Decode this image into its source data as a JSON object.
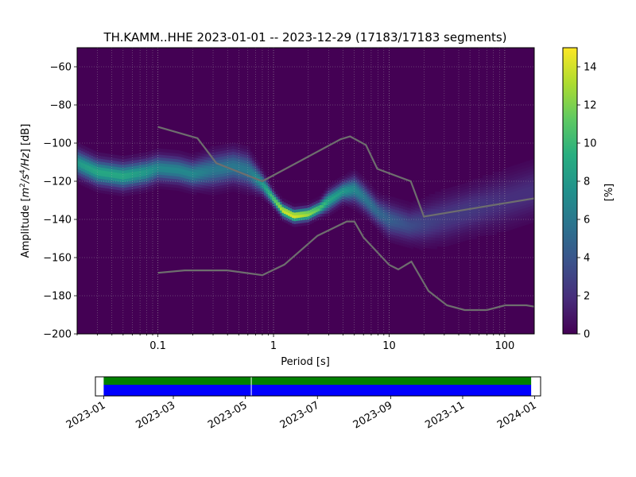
{
  "chart_data": [
    {
      "type": "heatmap",
      "title": "TH.KAMM..HHE   2023-01-01 -- 2023-12-29  (17183/17183 segments)",
      "xlabel": "Period [s]",
      "ylabel_prefix": "Amplitude [",
      "ylabel_unit_m": "m",
      "ylabel_unit_m_exp": "2",
      "ylabel_unit_s": "/s",
      "ylabel_unit_s_exp": "4",
      "ylabel_unit_hz": "/Hz",
      "ylabel_suffix": "] [dB]",
      "x_scale": "log",
      "xlim": [
        0.02,
        180
      ],
      "ylim": [
        -200,
        -50
      ],
      "x_ticks": [
        {
          "value": 0.1,
          "label": "0.1"
        },
        {
          "value": 1,
          "label": "1"
        },
        {
          "value": 10,
          "label": "10"
        },
        {
          "value": 100,
          "label": "100"
        }
      ],
      "y_ticks": [
        {
          "value": -60,
          "label": "−60"
        },
        {
          "value": -80,
          "label": "−80"
        },
        {
          "value": -100,
          "label": "−100"
        },
        {
          "value": -120,
          "label": "−120"
        },
        {
          "value": -140,
          "label": "−140"
        },
        {
          "value": -160,
          "label": "−160"
        },
        {
          "value": -180,
          "label": "−180"
        },
        {
          "value": -200,
          "label": "−200"
        }
      ],
      "grid": true,
      "colormap": "viridis",
      "colorbar": {
        "label": "[%]",
        "range": [
          0,
          15
        ],
        "ticks": [
          {
            "value": 0,
            "label": "0"
          },
          {
            "value": 2,
            "label": "2"
          },
          {
            "value": 4,
            "label": "4"
          },
          {
            "value": 6,
            "label": "6"
          },
          {
            "value": 8,
            "label": "8"
          },
          {
            "value": 10,
            "label": "10"
          },
          {
            "value": 12,
            "label": "12"
          },
          {
            "value": 14,
            "label": "14"
          }
        ]
      },
      "mode_curve": {
        "x": [
          0.02,
          0.03,
          0.05,
          0.08,
          0.1,
          0.15,
          0.2,
          0.3,
          0.45,
          0.6,
          0.8,
          1.0,
          1.2,
          1.5,
          2.0,
          2.5,
          3.0,
          4.0,
          5.0,
          6.0,
          8.0,
          10,
          15,
          20,
          30,
          50,
          100,
          180
        ],
        "y": [
          -110,
          -115,
          -117,
          -115,
          -113,
          -114,
          -116,
          -114,
          -112,
          -114,
          -121,
          -129,
          -135,
          -138,
          -137,
          -134,
          -130,
          -125,
          -124,
          -128,
          -136,
          -140,
          -143,
          -142,
          -139,
          -135,
          -130,
          -125
        ],
        "peak_percent": [
          8,
          9,
          9,
          8,
          7,
          7,
          7,
          6,
          6,
          6,
          8,
          11,
          14,
          14.5,
          13,
          11,
          9,
          8,
          7,
          6,
          5,
          4.5,
          3.5,
          3,
          2.5,
          2.5,
          2,
          2
        ],
        "spread_db": [
          4,
          4,
          4,
          4,
          4,
          4,
          4,
          5,
          5,
          5,
          3,
          2,
          2,
          2,
          2,
          2,
          3,
          3,
          4,
          4,
          4,
          5,
          5,
          6,
          7,
          7,
          8,
          8
        ]
      },
      "noise_models": {
        "high": {
          "x": [
            0.1,
            0.22,
            0.32,
            0.8,
            3.8,
            4.6,
            6.3,
            7.9,
            15.4,
            20,
            354.8
          ],
          "y": [
            -91.5,
            -97.4,
            -110.5,
            -120,
            -98,
            -96.5,
            -101,
            -113.5,
            -120,
            -138.5,
            -126
          ]
        },
        "low": {
          "x": [
            0.1,
            0.17,
            0.4,
            0.8,
            1.24,
            2.4,
            4.3,
            5,
            6,
            10,
            12,
            15.6,
            21.9,
            31.6,
            45,
            70,
            101,
            154,
            180
          ],
          "y": [
            -168,
            -166.7,
            -166.7,
            -169.2,
            -163.7,
            -148.6,
            -141.1,
            -141.1,
            -149.4,
            -163.8,
            -166.2,
            -162.1,
            -177.5,
            -185,
            -187.5,
            -187.5,
            -185,
            -185,
            -185.7
          ]
        }
      }
    },
    {
      "type": "timeline",
      "x_ticks": [
        {
          "value": "2023-01-01",
          "label": "2023-01"
        },
        {
          "value": "2023-03-01",
          "label": "2023-03"
        },
        {
          "value": "2023-05-01",
          "label": "2023-05"
        },
        {
          "value": "2023-07-01",
          "label": "2023-07"
        },
        {
          "value": "2023-09-01",
          "label": "2023-09"
        },
        {
          "value": "2023-11-01",
          "label": "2023-11"
        },
        {
          "value": "2024-01-01",
          "label": "2024-01"
        }
      ],
      "xlim": [
        "2022-12-25",
        "2024-01-06"
      ],
      "coverage": [
        {
          "start": "2023-01-01",
          "end": "2023-12-29"
        }
      ],
      "gaps": [
        "2023-05-06"
      ],
      "colors": {
        "used": "#008000",
        "available": "#0000ff"
      }
    }
  ]
}
